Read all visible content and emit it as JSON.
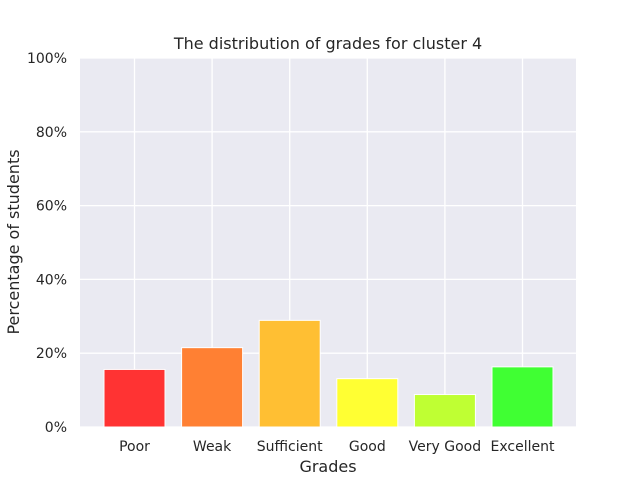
{
  "chart_data": {
    "type": "bar",
    "title": "The distribution of grades for cluster 4",
    "xlabel": "Grades",
    "ylabel": "Percentage of students",
    "categories": [
      "Poor",
      "Weak",
      "Sufficient",
      "Good",
      "Very Good",
      "Excellent"
    ],
    "values": [
      15.6,
      21.5,
      28.9,
      13.1,
      8.8,
      16.3
    ],
    "colors": [
      "#ff3333",
      "#ff8033",
      "#ffbf33",
      "#ffff33",
      "#bfff33",
      "#40ff33"
    ],
    "ylim": [
      0,
      100
    ],
    "yticks": [
      0,
      20,
      40,
      60,
      80,
      100
    ],
    "ytick_labels": [
      "0%",
      "20%",
      "40%",
      "60%",
      "80%",
      "100%"
    ],
    "grid": true,
    "background": "#eaeaf2",
    "grid_color": "#ffffff"
  }
}
